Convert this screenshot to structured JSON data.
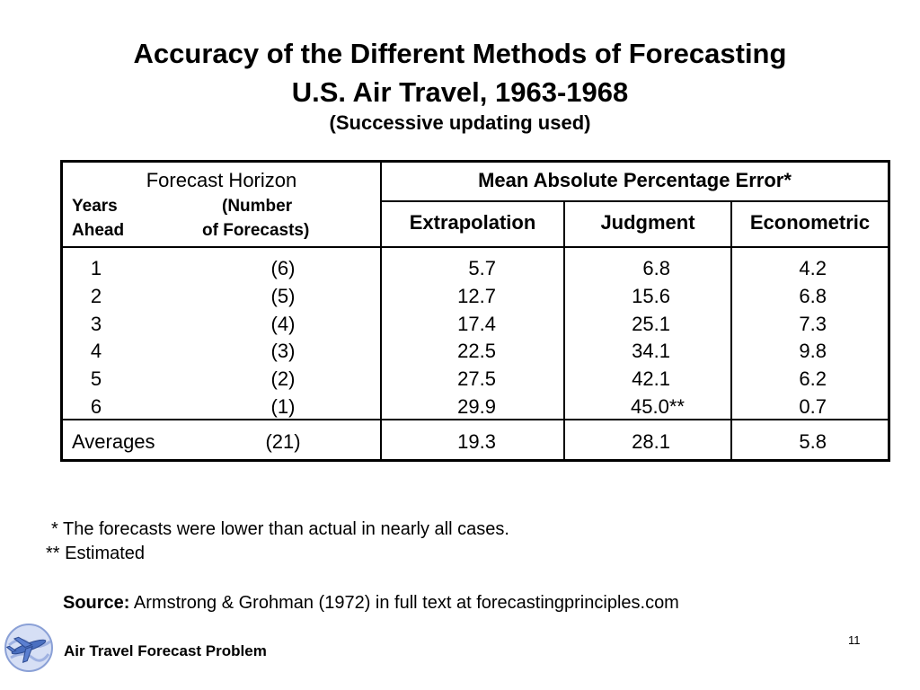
{
  "slide": {
    "title_line1": "Accuracy of the Different Methods of Forecasting",
    "title_line2": "U.S. Air Travel, 1963-1968",
    "subtitle": "(Successive updating used)",
    "page_number": "11",
    "footer": "Air Travel Forecast Problem"
  },
  "table": {
    "horizon_header": "Forecast Horizon",
    "years_label_1": "Years",
    "years_label_2": "Ahead",
    "number_label_1": "(Number",
    "number_label_2": "of Forecasts)",
    "mape_header": "Mean Absolute Percentage Error*",
    "col_extrapolation": "Extrapolation",
    "col_judgment": "Judgment",
    "col_econometric": "Econometric",
    "rows": [
      {
        "years": "1",
        "forecasts": "(6)",
        "extrapolation": "5.7",
        "judgment": "6.8",
        "econometric": "4.2"
      },
      {
        "years": "2",
        "forecasts": "(5)",
        "extrapolation": "12.7",
        "judgment": "15.6",
        "econometric": "6.8"
      },
      {
        "years": "3",
        "forecasts": "(4)",
        "extrapolation": "17.4",
        "judgment": "25.1",
        "econometric": "7.3"
      },
      {
        "years": "4",
        "forecasts": "(3)",
        "extrapolation": "22.5",
        "judgment": "34.1",
        "econometric": "9.8"
      },
      {
        "years": "5",
        "forecasts": "(2)",
        "extrapolation": "27.5",
        "judgment": "42.1",
        "econometric": "6.2"
      },
      {
        "years": "6",
        "forecasts": "(1)",
        "extrapolation": "29.9",
        "judgment": "45.0**",
        "econometric": "0.7"
      }
    ],
    "averages": {
      "label": "Averages",
      "forecasts": "(21)",
      "extrapolation": "19.3",
      "judgment": "28.1",
      "econometric": "5.8"
    }
  },
  "notes": {
    "note1": "* The forecasts were lower than actual in nearly all cases.",
    "note2": "** Estimated",
    "source_label": "Source:",
    "source_text": "Armstrong & Grohman (1972) in full text at forecastingprinciples.com"
  },
  "icons": {
    "logo": "airplane-globe-icon"
  }
}
